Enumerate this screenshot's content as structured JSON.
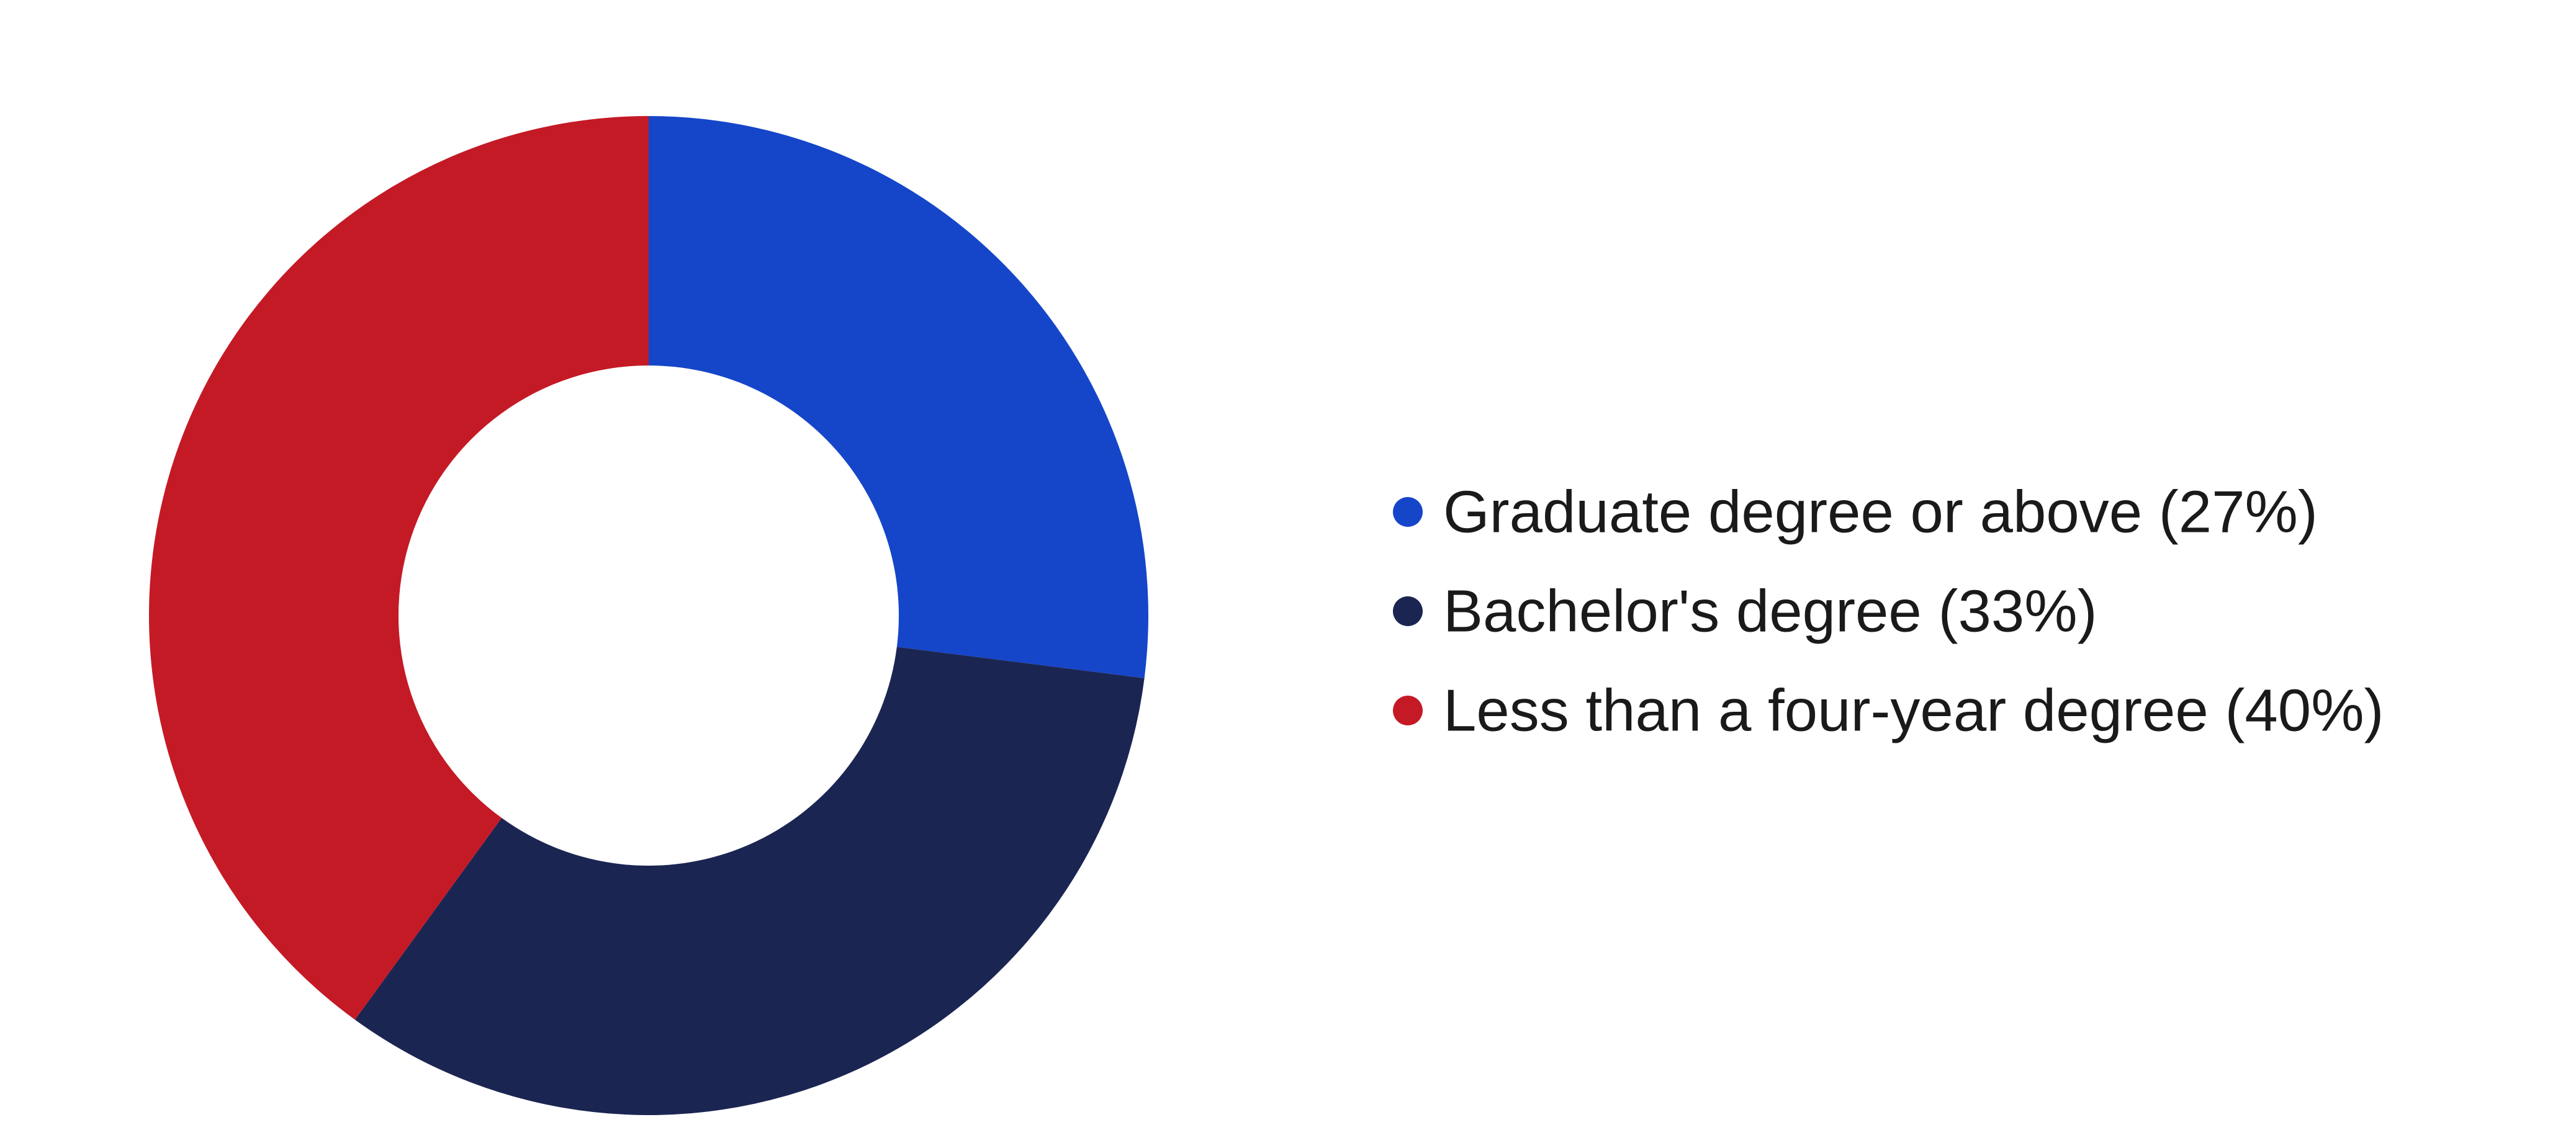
{
  "chart_data": {
    "type": "pie",
    "variant": "donut",
    "start_angle": "12 o'clock",
    "direction": "clockwise",
    "legend_position": "right",
    "slices": [
      {
        "label": "Graduate degree or above",
        "value": 27,
        "display": "Graduate degree or above (27%)",
        "color": "#1546C9"
      },
      {
        "label": "Bachelor's degree",
        "value": 33,
        "display": "Bachelor's degree (33%)",
        "color": "#1B2552"
      },
      {
        "label": "Less than a four-year degree",
        "value": 40,
        "display": "Less than a four-year degree (40%)",
        "color": "#C41A26"
      }
    ]
  }
}
